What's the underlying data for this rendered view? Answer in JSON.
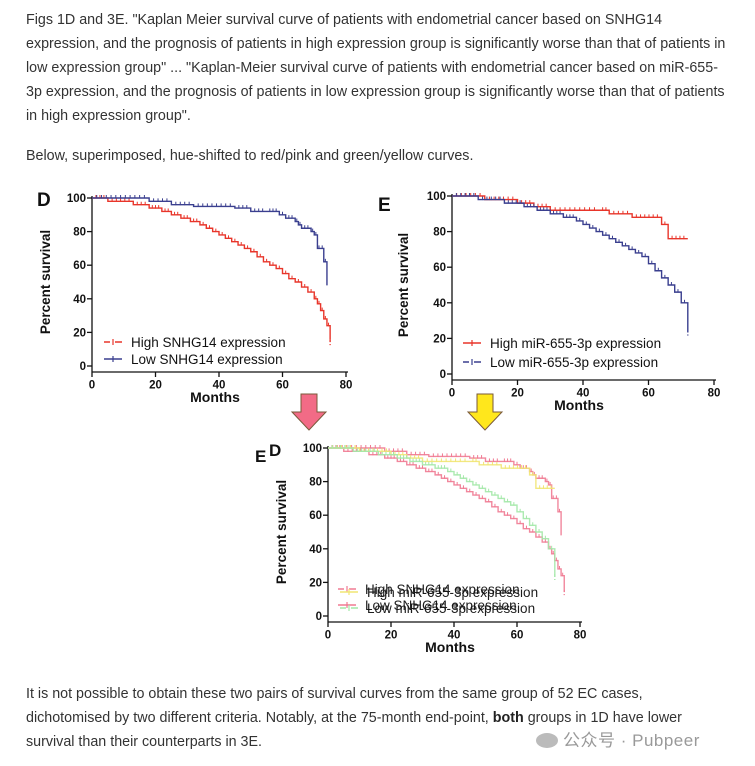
{
  "text": {
    "p1": "Figs 1D and 3E. \"Kaplan Meier survival curve of patients with endometrial cancer based on SNHG14 expression, and the prognosis of patients in high expression group is significantly worse than that of patients in low expression group\" ... \"Kaplan-Meier survival curve of patients with endometrial cancer based on miR-655-3p expression, and the prognosis of patients in low expression group is significantly worse than that of patients in high expression group\".",
    "p2": "Below, superimposed, hue-shifted to red/pink and green/yellow curves.",
    "p3_a": "It is not possible to obtain these two pairs of survival curves from the same group of 52 EC cases, dichotomised by two different criteria. Notably, at the 75-month end-point, ",
    "p3_b": "both",
    "p3_c": " groups in 1D have lower survival than their counterparts in 3E.",
    "watermark": "公众号 · Pubpeer"
  },
  "colors": {
    "red": "#e8352a",
    "navy": "#3a3f8f",
    "pink": "#f07a92",
    "green": "#a3e8a8",
    "yellow": "#f1e573",
    "greenLetter": "#86e08c",
    "arrowPink": "#f26b86",
    "arrowYellow": "#ffe71c"
  },
  "chart_data": [
    {
      "panel": "D",
      "type": "line",
      "xlabel": "Months",
      "ylabel": "Percent survival",
      "xlim": [
        0,
        80
      ],
      "ylim": [
        0,
        100
      ],
      "xticks": [
        "0",
        "20",
        "40",
        "60",
        "80"
      ],
      "yticks": [
        "0",
        "20",
        "40",
        "60",
        "80",
        "100"
      ],
      "legend_position": "bottom-left",
      "series": [
        {
          "name": "High SNHG14 expression",
          "color": "#e8352a",
          "dash": true,
          "x": [
            0,
            5,
            13,
            18,
            22,
            25,
            28,
            31,
            34,
            36,
            38,
            40,
            42,
            44,
            46,
            48,
            50,
            52,
            54,
            56,
            58,
            60,
            62,
            64,
            66,
            68,
            70,
            71,
            72,
            73,
            74,
            75
          ],
          "y": [
            100,
            98,
            96,
            94,
            92,
            90,
            88,
            86,
            84,
            82,
            80,
            78,
            76,
            74,
            72,
            70,
            68,
            65,
            62,
            60,
            58,
            55,
            52,
            50,
            47,
            44,
            40,
            37,
            33,
            28,
            24,
            16
          ]
        },
        {
          "name": "Low SNHG14 expression",
          "color": "#3a3f8f",
          "dash": false,
          "x": [
            0,
            18,
            25,
            32,
            45,
            50,
            55,
            59,
            61,
            64,
            65,
            66,
            69,
            70,
            71,
            72,
            73,
            74
          ],
          "y": [
            100,
            98,
            96,
            95,
            94,
            92,
            92,
            90,
            88,
            86,
            84,
            82,
            80,
            78,
            70,
            70,
            62,
            48
          ]
        }
      ]
    },
    {
      "panel": "E",
      "type": "line",
      "xlabel": "Months",
      "ylabel": "Percent survival",
      "xlim": [
        0,
        80
      ],
      "ylim": [
        0,
        100
      ],
      "xticks": [
        "0",
        "20",
        "40",
        "60",
        "80"
      ],
      "yticks": [
        "0",
        "20",
        "40",
        "60",
        "80",
        "100"
      ],
      "legend_position": "bottom-left",
      "series": [
        {
          "name": "High miR-655-3p expression",
          "color": "#e8352a",
          "dash": false,
          "x": [
            0,
            10,
            20,
            25,
            30,
            45,
            48,
            55,
            64,
            66,
            72
          ],
          "y": [
            100,
            98,
            96,
            94,
            92,
            92,
            90,
            88,
            84,
            76,
            76
          ]
        },
        {
          "name": "Low miR-655-3p expression",
          "color": "#3a3f8f",
          "dash": true,
          "x": [
            0,
            8,
            16,
            22,
            26,
            30,
            34,
            38,
            40,
            42,
            44,
            46,
            48,
            50,
            52,
            54,
            56,
            58,
            60,
            62,
            64,
            66,
            68,
            70,
            72
          ],
          "y": [
            100,
            98,
            96,
            94,
            92,
            90,
            88,
            86,
            84,
            82,
            80,
            78,
            76,
            74,
            72,
            70,
            68,
            66,
            62,
            58,
            54,
            50,
            46,
            40,
            25
          ]
        }
      ]
    },
    {
      "panel": "D / E overlay",
      "type": "line",
      "xlabel": "Months",
      "ylabel": "Percent survival",
      "xlim": [
        0,
        80
      ],
      "ylim": [
        0,
        100
      ],
      "xticks": [
        "0",
        "20",
        "40",
        "60",
        "80"
      ],
      "yticks": [
        "0",
        "20",
        "40",
        "60",
        "80",
        "100"
      ],
      "legend_position": "bottom-left",
      "series": [
        {
          "name": "High SNHG14 expression",
          "color": "#f07a92",
          "dash": true,
          "x": [
            0,
            5,
            13,
            18,
            22,
            25,
            28,
            31,
            34,
            36,
            38,
            40,
            42,
            44,
            46,
            48,
            50,
            52,
            54,
            56,
            58,
            60,
            62,
            64,
            66,
            68,
            70,
            71,
            72,
            73,
            74,
            75
          ],
          "y": [
            100,
            98,
            96,
            94,
            92,
            90,
            88,
            86,
            84,
            82,
            80,
            78,
            76,
            74,
            72,
            70,
            68,
            65,
            62,
            60,
            58,
            55,
            52,
            50,
            47,
            44,
            40,
            37,
            33,
            28,
            24,
            16
          ]
        },
        {
          "name": "Low SNHG14 expression",
          "color": "#f07a92",
          "dash": false,
          "x": [
            0,
            18,
            25,
            32,
            45,
            50,
            55,
            59,
            61,
            64,
            65,
            66,
            69,
            70,
            71,
            72,
            73,
            74
          ],
          "y": [
            100,
            98,
            96,
            95,
            94,
            92,
            92,
            90,
            88,
            86,
            84,
            82,
            80,
            78,
            70,
            70,
            62,
            48
          ]
        },
        {
          "name": "High miR-655-3p expression",
          "color": "#f1e573",
          "dash": false,
          "x": [
            0,
            10,
            20,
            25,
            30,
            45,
            48,
            55,
            64,
            66,
            72
          ],
          "y": [
            100,
            98,
            96,
            94,
            92,
            92,
            90,
            88,
            84,
            76,
            76
          ]
        },
        {
          "name": "Low miR-655-3p expression",
          "color": "#a3e8a8",
          "dash": true,
          "x": [
            0,
            8,
            16,
            22,
            26,
            30,
            34,
            38,
            40,
            42,
            44,
            46,
            48,
            50,
            52,
            54,
            56,
            58,
            60,
            62,
            64,
            66,
            68,
            70,
            72
          ],
          "y": [
            100,
            98,
            96,
            94,
            92,
            90,
            88,
            86,
            84,
            82,
            80,
            78,
            76,
            74,
            72,
            70,
            68,
            66,
            62,
            58,
            54,
            50,
            46,
            40,
            25
          ]
        }
      ]
    }
  ]
}
